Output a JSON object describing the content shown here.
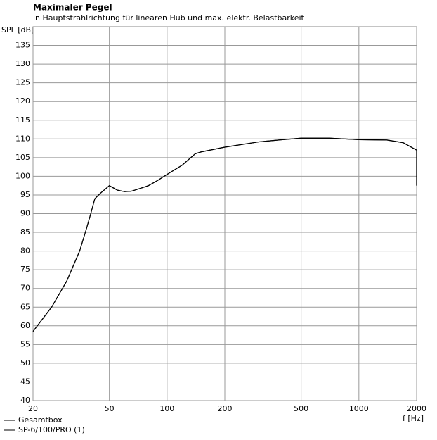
{
  "chart_data": {
    "type": "line",
    "title": "Maximaler Pegel",
    "subtitle": "in Hauptstrahlrichtung für linearen Hub und max. elektr. Belastbarkeit",
    "y_label": "SPL [dB]",
    "x_label": "f [Hz]",
    "x_scale": "log",
    "grid": true,
    "x": [
      20,
      25,
      30,
      35,
      38,
      40,
      42,
      45,
      50,
      52,
      55,
      60,
      65,
      70,
      80,
      90,
      100,
      120,
      140,
      150,
      200,
      300,
      400,
      500,
      700,
      1000,
      1400,
      1700,
      2000,
      2000
    ],
    "series": [
      {
        "name": "Gesamtbox",
        "color": "#000000",
        "values": [
          58.5,
          65,
          72,
          80,
          86,
          90,
          94,
          95.5,
          97.5,
          97,
          96.3,
          95.9,
          96,
          96.5,
          97.5,
          99,
          100.5,
          103,
          106,
          106.5,
          107.8,
          109.2,
          109.8,
          110.2,
          110.2,
          109.8,
          109.7,
          109,
          107,
          97.5
        ]
      },
      {
        "name": "SP-6/100/PRO (1)",
        "color": "#000000",
        "values": [
          58.5,
          65,
          72,
          80,
          86,
          90,
          94,
          95.5,
          97.5,
          97,
          96.3,
          95.9,
          96,
          96.5,
          97.5,
          99,
          100.5,
          103,
          106,
          106.5,
          107.8,
          109.2,
          109.8,
          110.2,
          110.2,
          109.8,
          109.7,
          109,
          107,
          97.5
        ]
      }
    ],
    "xlim": [
      20,
      2000
    ],
    "xticks": [
      20,
      50,
      100,
      200,
      500,
      1000,
      2000
    ],
    "ylim": [
      40,
      140
    ],
    "yticks": [
      40,
      45,
      50,
      55,
      60,
      65,
      70,
      75,
      80,
      85,
      90,
      95,
      100,
      105,
      110,
      115,
      120,
      125,
      130,
      135
    ]
  }
}
